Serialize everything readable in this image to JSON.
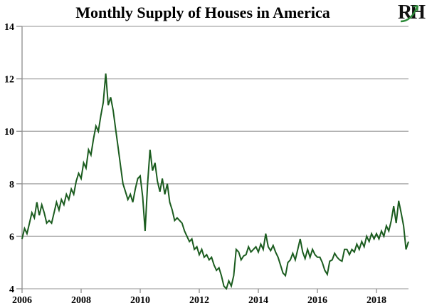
{
  "header": {
    "logo_text": "RH"
  },
  "chart_data": {
    "type": "line",
    "title": "Monthly Supply of Houses in America",
    "x_start": "2006-01",
    "x_end": "2019-02",
    "frequency": "monthly",
    "series": [
      {
        "name": "Monthly supply of houses (months)",
        "color": "#1b5c1f",
        "values": [
          5.9,
          6.3,
          6.1,
          6.5,
          6.9,
          6.7,
          7.3,
          6.8,
          7.2,
          6.9,
          6.5,
          6.6,
          6.5,
          6.9,
          7.3,
          7.0,
          7.4,
          7.2,
          7.6,
          7.4,
          7.8,
          7.6,
          8.1,
          8.4,
          8.2,
          8.8,
          8.6,
          9.3,
          9.1,
          9.7,
          10.2,
          10.0,
          10.6,
          11.1,
          12.2,
          11.0,
          11.3,
          10.8,
          10.1,
          9.4,
          8.7,
          8.0,
          7.7,
          7.4,
          7.6,
          7.3,
          7.8,
          8.2,
          8.3,
          7.5,
          6.2,
          8.0,
          9.3,
          8.5,
          8.8,
          8.1,
          7.7,
          8.2,
          7.6,
          8.0,
          7.3,
          7.0,
          6.6,
          6.7,
          6.6,
          6.5,
          6.2,
          6.0,
          5.8,
          5.9,
          5.5,
          5.6,
          5.3,
          5.5,
          5.2,
          5.3,
          5.1,
          5.2,
          4.9,
          4.7,
          4.8,
          4.5,
          4.1,
          4.0,
          4.3,
          4.1,
          4.5,
          5.5,
          5.4,
          5.1,
          5.25,
          5.3,
          5.6,
          5.4,
          5.5,
          5.6,
          5.4,
          5.7,
          5.5,
          6.1,
          5.6,
          5.45,
          5.65,
          5.4,
          5.2,
          4.9,
          4.6,
          4.5,
          5.0,
          5.1,
          5.35,
          5.1,
          5.5,
          5.9,
          5.4,
          5.15,
          5.5,
          5.2,
          5.5,
          5.3,
          5.2,
          5.2,
          5.0,
          4.7,
          4.55,
          5.05,
          5.1,
          5.35,
          5.2,
          5.1,
          5.05,
          5.5,
          5.5,
          5.3,
          5.5,
          5.4,
          5.7,
          5.5,
          5.8,
          5.6,
          6.0,
          5.8,
          6.1,
          5.9,
          6.1,
          5.9,
          6.2,
          6.0,
          6.4,
          6.2,
          6.6,
          7.15,
          6.5,
          7.35,
          6.9,
          6.4,
          5.5,
          5.8
        ]
      }
    ],
    "x_tick_labels": [
      "2006",
      "2008",
      "2010",
      "2012",
      "2014",
      "2016",
      "2018"
    ],
    "x_tick_interval_months": 24,
    "y_ticks": [
      "14",
      "12",
      "10",
      "8",
      "6",
      "4"
    ],
    "y_tick_values": [
      14,
      12,
      10,
      8,
      6,
      4
    ],
    "ylim": [
      4,
      14
    ],
    "grid": "horizontal",
    "legend": "none",
    "background_color": "#ffffff",
    "gridline_color": "#a6a6a6",
    "axis_color": "#8c8c8c",
    "label_color": "#000000",
    "logo_arrow_color": "#2e8b3a"
  }
}
